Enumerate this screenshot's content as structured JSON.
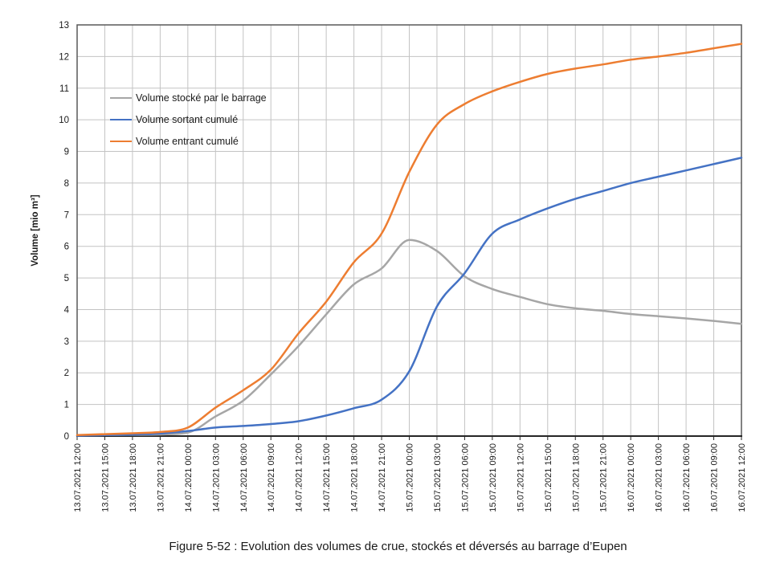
{
  "figure": {
    "caption": "Figure 5-52 : Evolution des volumes de crue, stockés et déversés au barrage d’Eupen"
  },
  "chart_data": {
    "type": "line",
    "title": "",
    "xlabel": "",
    "ylabel": "Volume [mio m³]",
    "ylim": [
      0,
      13
    ],
    "y_ticks": [
      0,
      1,
      2,
      3,
      4,
      5,
      6,
      7,
      8,
      9,
      10,
      11,
      12,
      13
    ],
    "grid": true,
    "legend_position": "inside-top-left",
    "colors": {
      "grid": "#c3c3c3",
      "border": "#595959",
      "axis": "#262626",
      "text": "#1a1a1a"
    },
    "x_tick_labels": [
      "13.07.2021 12:00",
      "13.07.2021 15:00",
      "13.07.2021 18:00",
      "13.07.2021 21:00",
      "14.07.2021 00:00",
      "14.07.2021 03:00",
      "14.07.2021 06:00",
      "14.07.2021 09:00",
      "14.07.2021 12:00",
      "14.07.2021 15:00",
      "14.07.2021 18:00",
      "14.07.2021 21:00",
      "15.07.2021 00:00",
      "15.07.2021 03:00",
      "15.07.2021 06:00",
      "15.07.2021 09:00",
      "15.07.2021 12:00",
      "15.07.2021 15:00",
      "15.07.2021 18:00",
      "15.07.2021 21:00",
      "16.07.2021 00:00",
      "16.07.2021 03:00",
      "16.07.2021 06:00",
      "16.07.2021 09:00",
      "16.07.2021 12:00"
    ],
    "series": [
      {
        "name": "Volume stocké par le barrage",
        "color": "#a6a6a6",
        "values": [
          0.02,
          0.03,
          0.04,
          0.05,
          0.11,
          0.62,
          1.12,
          1.95,
          2.85,
          3.85,
          4.8,
          5.3,
          6.2,
          5.85,
          5.05,
          4.65,
          4.4,
          4.17,
          4.04,
          3.96,
          3.86,
          3.79,
          3.72,
          3.64,
          3.55
        ]
      },
      {
        "name": "Volume sortant cumulé",
        "color": "#4472c4",
        "values": [
          0.01,
          0.03,
          0.05,
          0.08,
          0.16,
          0.27,
          0.32,
          0.38,
          0.47,
          0.65,
          0.88,
          1.15,
          2.05,
          4.1,
          5.15,
          6.4,
          6.85,
          7.2,
          7.5,
          7.75,
          8.0,
          8.2,
          8.4,
          8.6,
          8.8
        ]
      },
      {
        "name": "Volume entrant cumulé",
        "color": "#ed7d31",
        "values": [
          0.03,
          0.06,
          0.09,
          0.13,
          0.27,
          0.9,
          1.45,
          2.1,
          3.25,
          4.25,
          5.5,
          6.4,
          8.35,
          9.85,
          10.5,
          10.9,
          11.2,
          11.45,
          11.62,
          11.75,
          11.9,
          12.0,
          12.12,
          12.26,
          12.4
        ]
      }
    ]
  }
}
